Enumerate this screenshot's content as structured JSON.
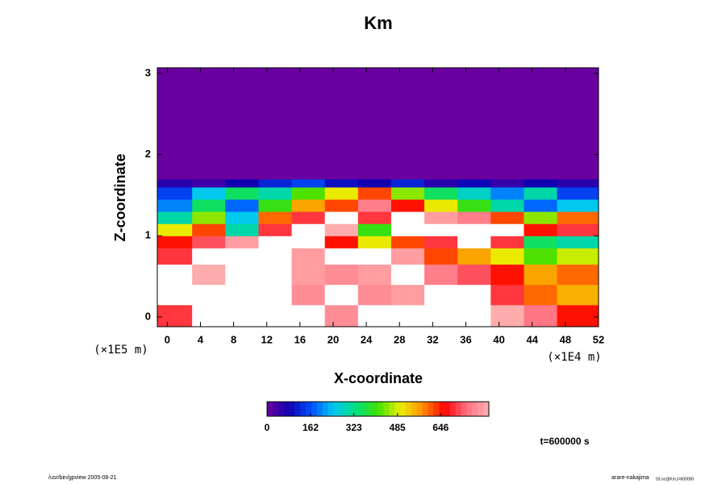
{
  "chart_data": {
    "type": "heatmap",
    "title": "Km",
    "xlabel": "X-coordinate",
    "ylabel": "Z-coordinate",
    "x_unit_label": "(×1E4 m)",
    "y_unit_label": "(×1E5 m)",
    "time_label": "t=600000 s",
    "footer_left": "/usr/bin/gpview 2005-08-21",
    "footer_right": "arare-nakajima",
    "footer_right_sub": "03.nc@Km,t=600000",
    "xlim": [
      -1.2,
      52
    ],
    "ylim": [
      -0.12,
      3.07
    ],
    "xticks": [
      0,
      4,
      8,
      12,
      16,
      20,
      24,
      28,
      32,
      36,
      40,
      44,
      48,
      52
    ],
    "yticks": [
      0,
      1,
      2,
      3
    ],
    "x_bins": [
      -1.2,
      3,
      7,
      11,
      15,
      19,
      23,
      27,
      31,
      35,
      39,
      43,
      47,
      52
    ],
    "y_bins": [
      -0.12,
      0.15,
      0.4,
      0.65,
      0.85,
      1.0,
      1.15,
      1.3,
      1.45,
      1.6,
      1.7,
      3.07
    ],
    "values": [
      [
        700,
        900,
        850,
        900,
        900,
        780,
        900,
        900,
        900,
        900,
        820,
        750,
        650
      ],
      [
        900,
        850,
        900,
        900,
        780,
        900,
        780,
        800,
        900,
        900,
        700,
        600,
        550
      ],
      [
        900,
        820,
        900,
        900,
        800,
        780,
        800,
        900,
        760,
        720,
        650,
        560,
        600
      ],
      [
        700,
        900,
        900,
        900,
        800,
        900,
        900,
        800,
        620,
        560,
        500,
        420,
        480
      ],
      [
        650,
        720,
        800,
        900,
        900,
        650,
        500,
        620,
        700,
        900,
        700,
        350,
        300
      ],
      [
        500,
        620,
        300,
        700,
        900,
        820,
        400,
        900,
        900,
        900,
        900,
        650,
        700
      ],
      [
        300,
        450,
        250,
        600,
        700,
        900,
        700,
        900,
        800,
        760,
        620,
        450,
        600
      ],
      [
        200,
        350,
        180,
        400,
        560,
        620,
        760,
        650,
        500,
        400,
        300,
        180,
        250
      ],
      [
        150,
        250,
        350,
        300,
        420,
        500,
        620,
        450,
        350,
        280,
        200,
        300,
        150
      ],
      [
        60,
        40,
        80,
        120,
        150,
        100,
        80,
        120,
        60,
        90,
        50,
        80,
        60
      ],
      [
        0,
        0,
        0,
        0,
        0,
        0,
        0,
        0,
        0,
        0,
        0,
        0,
        0
      ]
    ],
    "clim": [
      0,
      825
    ],
    "cticks": [
      0,
      162,
      323,
      485,
      646
    ],
    "colormap": [
      "#6a00a0",
      "#1000b0",
      "#0050ff",
      "#00c8f0",
      "#00e080",
      "#40e000",
      "#e8f000",
      "#ff9000",
      "#ff0000",
      "#ff7080",
      "#ffb0b0"
    ],
    "over_color": "#ffffff"
  }
}
